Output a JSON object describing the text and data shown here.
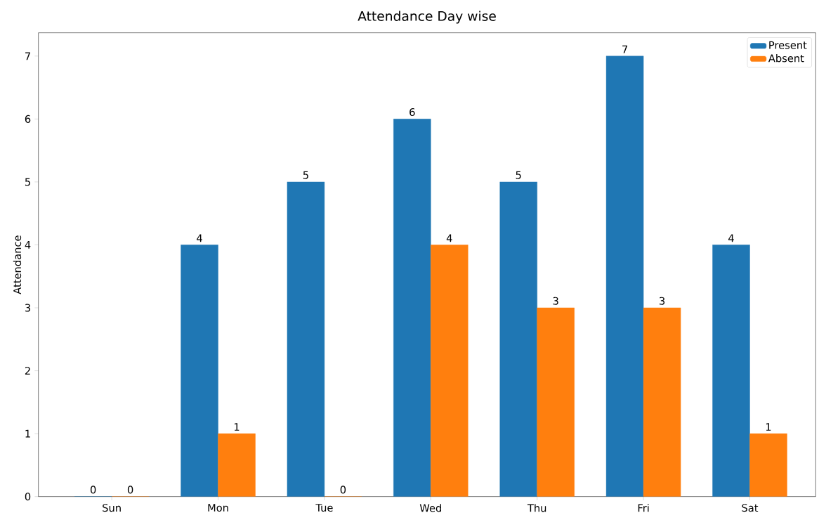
{
  "chart_data": {
    "type": "bar",
    "title": "Attendance Day wise",
    "ylabel": "Attendance",
    "categories": [
      "Sun",
      "Mon",
      "Tue",
      "Wed",
      "Thu",
      "Fri",
      "Sat"
    ],
    "series": [
      {
        "name": "Present",
        "color": "#1f77b4",
        "values": [
          0,
          4,
          5,
          6,
          5,
          7,
          4
        ]
      },
      {
        "name": "Absent",
        "color": "#ff7f0e",
        "values": [
          0,
          1,
          0,
          4,
          3,
          3,
          1
        ]
      }
    ],
    "ylim": [
      0,
      7.37
    ],
    "yticks": [
      0,
      1,
      2,
      3,
      4,
      5,
      6,
      7
    ],
    "data_labels": true,
    "legend": "top right",
    "grid": false
  }
}
